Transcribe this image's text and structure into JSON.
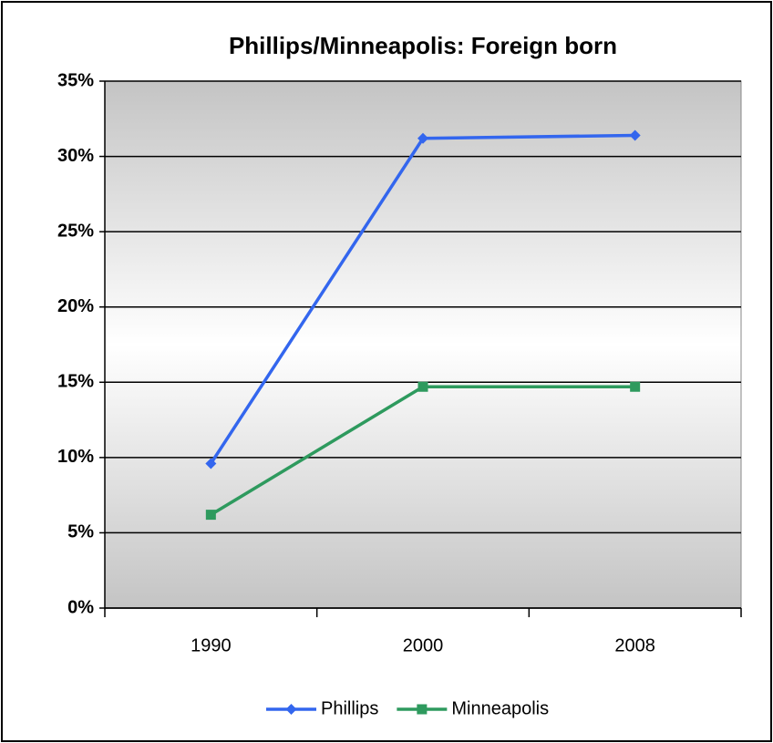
{
  "chart_data": {
    "type": "line",
    "title": "Phillips/Minneapolis: Foreign born",
    "categories": [
      "1990",
      "2000",
      "2008"
    ],
    "series": [
      {
        "name": "Phillips",
        "color": "#3366ee",
        "values": [
          9.6,
          31.2,
          31.4
        ]
      },
      {
        "name": "Minneapolis",
        "color": "#2e9a5e",
        "values": [
          6.2,
          14.7,
          14.7
        ]
      }
    ],
    "ylim": [
      0,
      35
    ],
    "yticks": [
      {
        "value": 0,
        "label": "0%"
      },
      {
        "value": 5,
        "label": "5%"
      },
      {
        "value": 10,
        "label": "10%"
      },
      {
        "value": 15,
        "label": "15%"
      },
      {
        "value": 20,
        "label": "20%"
      },
      {
        "value": 25,
        "label": "25%"
      },
      {
        "value": 30,
        "label": "30%"
      },
      {
        "value": 35,
        "label": "35%"
      }
    ],
    "grid": true,
    "legend": "bottom"
  }
}
